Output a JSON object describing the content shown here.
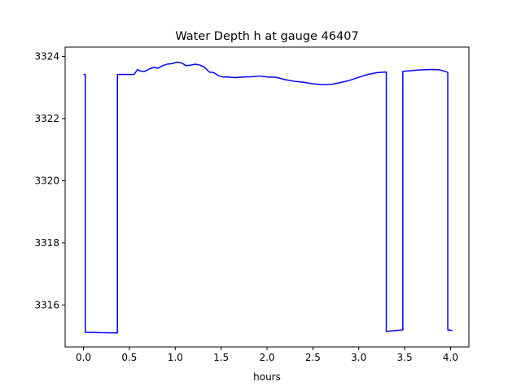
{
  "chart_data": {
    "type": "line",
    "title": "Water Depth h at gauge 46407",
    "xlabel": "hours",
    "ylabel": "",
    "xlim": [
      -0.2,
      4.2
    ],
    "ylim": [
      3314.65,
      3324.3
    ],
    "grid": false,
    "legend": "none",
    "x_ticks": [
      0.0,
      0.5,
      1.0,
      1.5,
      2.0,
      2.5,
      3.0,
      3.5,
      4.0
    ],
    "x_tick_labels": [
      "0.0",
      "0.5",
      "1.0",
      "1.5",
      "2.0",
      "2.5",
      "3.0",
      "3.5",
      "4.0"
    ],
    "y_ticks": [
      3316,
      3318,
      3320,
      3322,
      3324
    ],
    "y_tick_labels": [
      "3316",
      "3318",
      "3320",
      "3322",
      "3324"
    ],
    "series": [
      {
        "color": "#0000ff",
        "x": [
          0.0,
          0.02,
          0.02,
          0.37,
          0.37,
          0.55,
          0.59,
          0.62,
          0.67,
          0.72,
          0.77,
          0.81,
          0.86,
          0.91,
          0.97,
          1.02,
          1.07,
          1.12,
          1.17,
          1.22,
          1.27,
          1.32,
          1.37,
          1.42,
          1.47,
          1.52,
          1.57,
          1.65,
          1.75,
          1.85,
          1.92,
          2.0,
          2.1,
          2.2,
          2.3,
          2.4,
          2.5,
          2.6,
          2.7,
          2.8,
          2.9,
          3.0,
          3.1,
          3.2,
          3.3,
          3.3,
          3.48,
          3.48,
          3.6,
          3.7,
          3.8,
          3.88,
          3.96,
          3.97,
          3.97,
          4.02
        ],
        "y": [
          3323.42,
          3323.42,
          3315.12,
          3315.1,
          3323.42,
          3323.42,
          3323.58,
          3323.53,
          3323.52,
          3323.6,
          3323.65,
          3323.62,
          3323.7,
          3323.75,
          3323.77,
          3323.82,
          3323.79,
          3323.7,
          3323.72,
          3323.75,
          3323.72,
          3323.65,
          3323.5,
          3323.48,
          3323.38,
          3323.34,
          3323.34,
          3323.32,
          3323.34,
          3323.35,
          3323.37,
          3323.34,
          3323.33,
          3323.25,
          3323.2,
          3323.17,
          3323.12,
          3323.09,
          3323.1,
          3323.16,
          3323.23,
          3323.33,
          3323.42,
          3323.48,
          3323.5,
          3315.15,
          3315.2,
          3323.52,
          3323.55,
          3323.57,
          3323.58,
          3323.57,
          3323.5,
          3323.48,
          3315.2,
          3315.18
        ]
      }
    ]
  }
}
